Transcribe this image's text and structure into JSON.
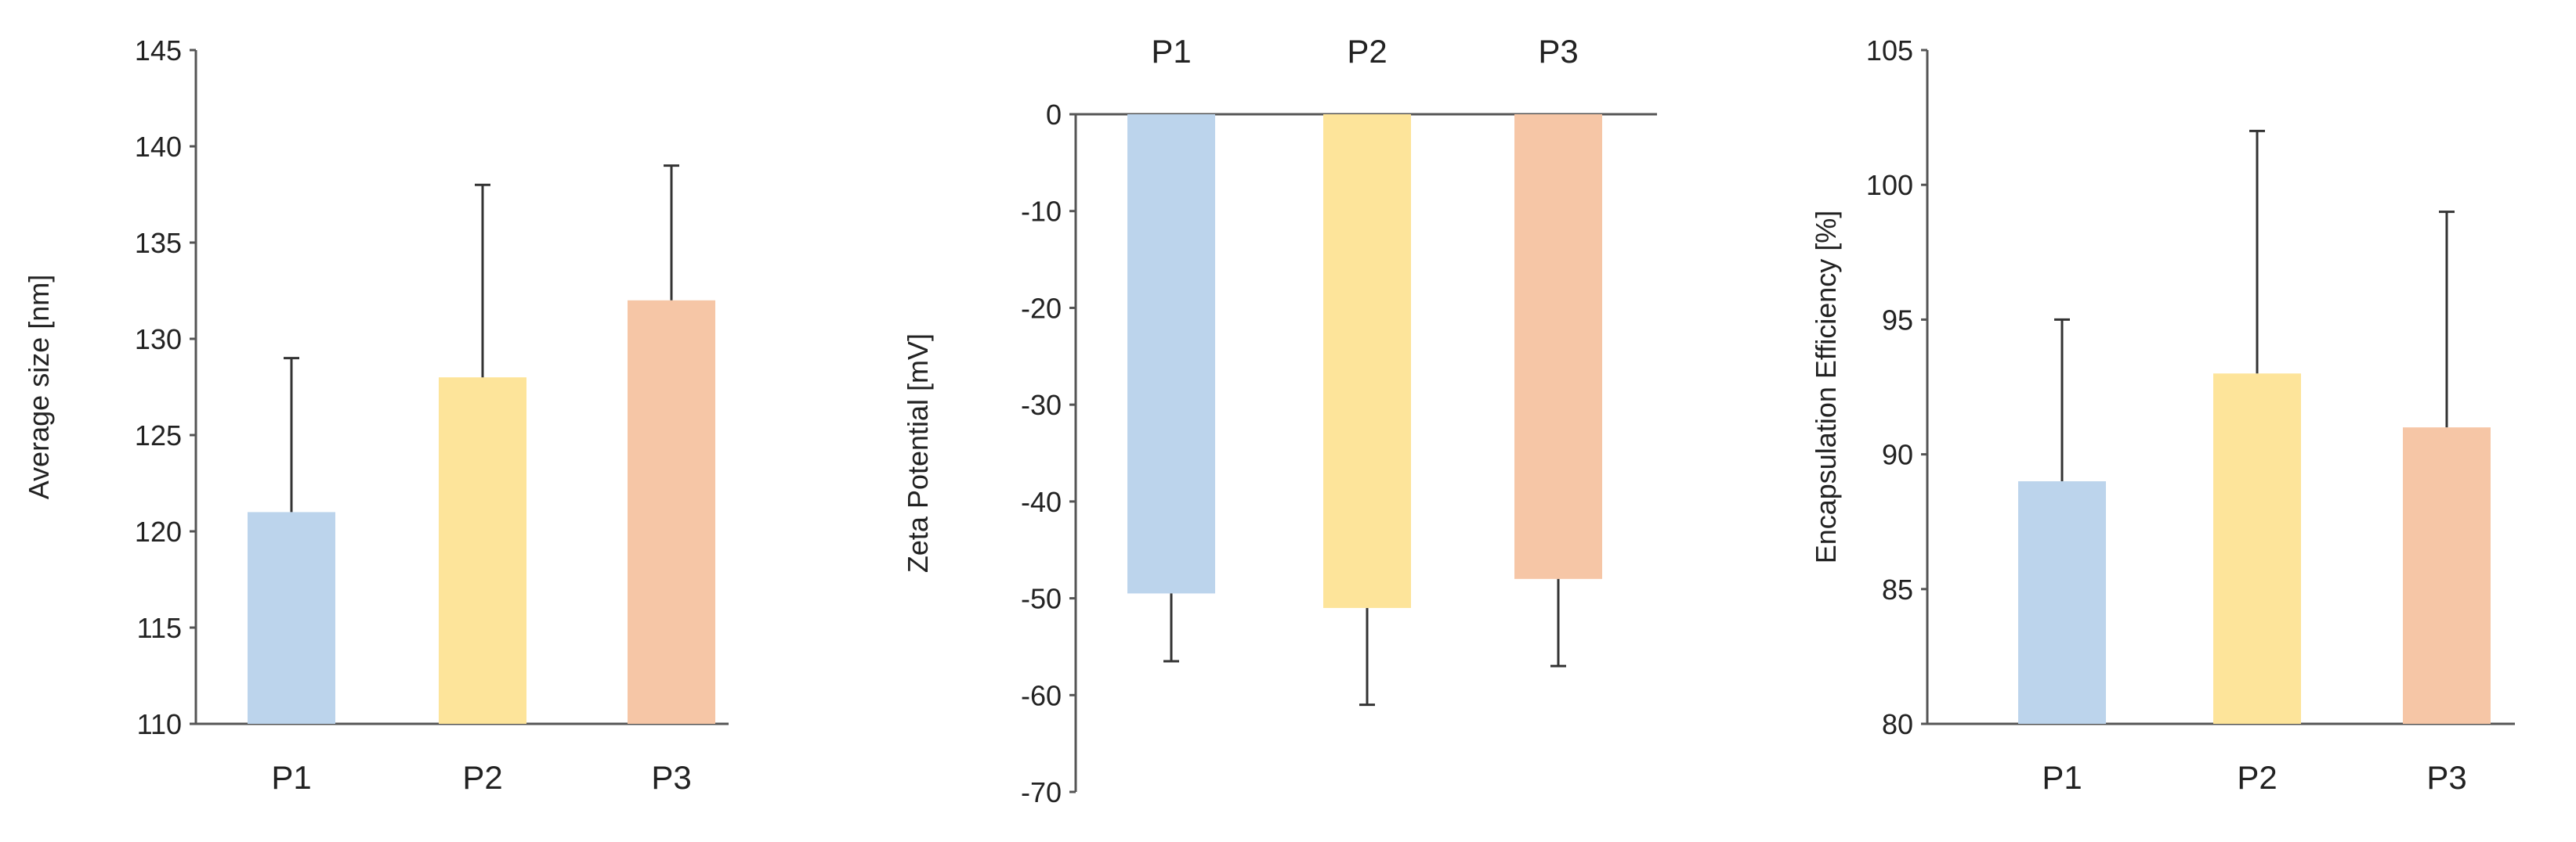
{
  "chart_data": [
    {
      "type": "bar",
      "categories": [
        "P1",
        "P2",
        "P3"
      ],
      "values": [
        121,
        128,
        132
      ],
      "errors": [
        8,
        10,
        7
      ],
      "ylabel": "Average size [nm]",
      "xlabel": "",
      "ylim": [
        110,
        145
      ],
      "yticks": [
        110,
        115,
        120,
        125,
        130,
        135,
        140,
        145
      ],
      "category_label_position": "bottom",
      "colors": [
        "#bcd4ec",
        "#fde49a",
        "#f6c6a6"
      ]
    },
    {
      "type": "bar",
      "categories": [
        "P1",
        "P2",
        "P3"
      ],
      "values": [
        -49.5,
        -51,
        -48
      ],
      "errors": [
        7,
        10,
        9
      ],
      "ylabel": "Zeta Potential [mV]",
      "xlabel": "",
      "ylim": [
        -70,
        0
      ],
      "yticks": [
        0,
        -10,
        -20,
        -30,
        -40,
        -50,
        -60,
        -70
      ],
      "category_label_position": "top",
      "colors": [
        "#bcd4ec",
        "#fde49a",
        "#f6c6a6"
      ]
    },
    {
      "type": "bar",
      "categories": [
        "P1",
        "P2",
        "P3"
      ],
      "values": [
        89,
        93,
        91
      ],
      "errors": [
        6,
        9,
        8
      ],
      "ylabel": "Encapsulation Efficiency [%]",
      "xlabel": "",
      "ylim": [
        80,
        105
      ],
      "yticks": [
        80,
        85,
        90,
        95,
        100,
        105
      ],
      "category_label_position": "bottom",
      "colors": [
        "#bcd4ec",
        "#fde49a",
        "#f6c6a6"
      ]
    }
  ]
}
